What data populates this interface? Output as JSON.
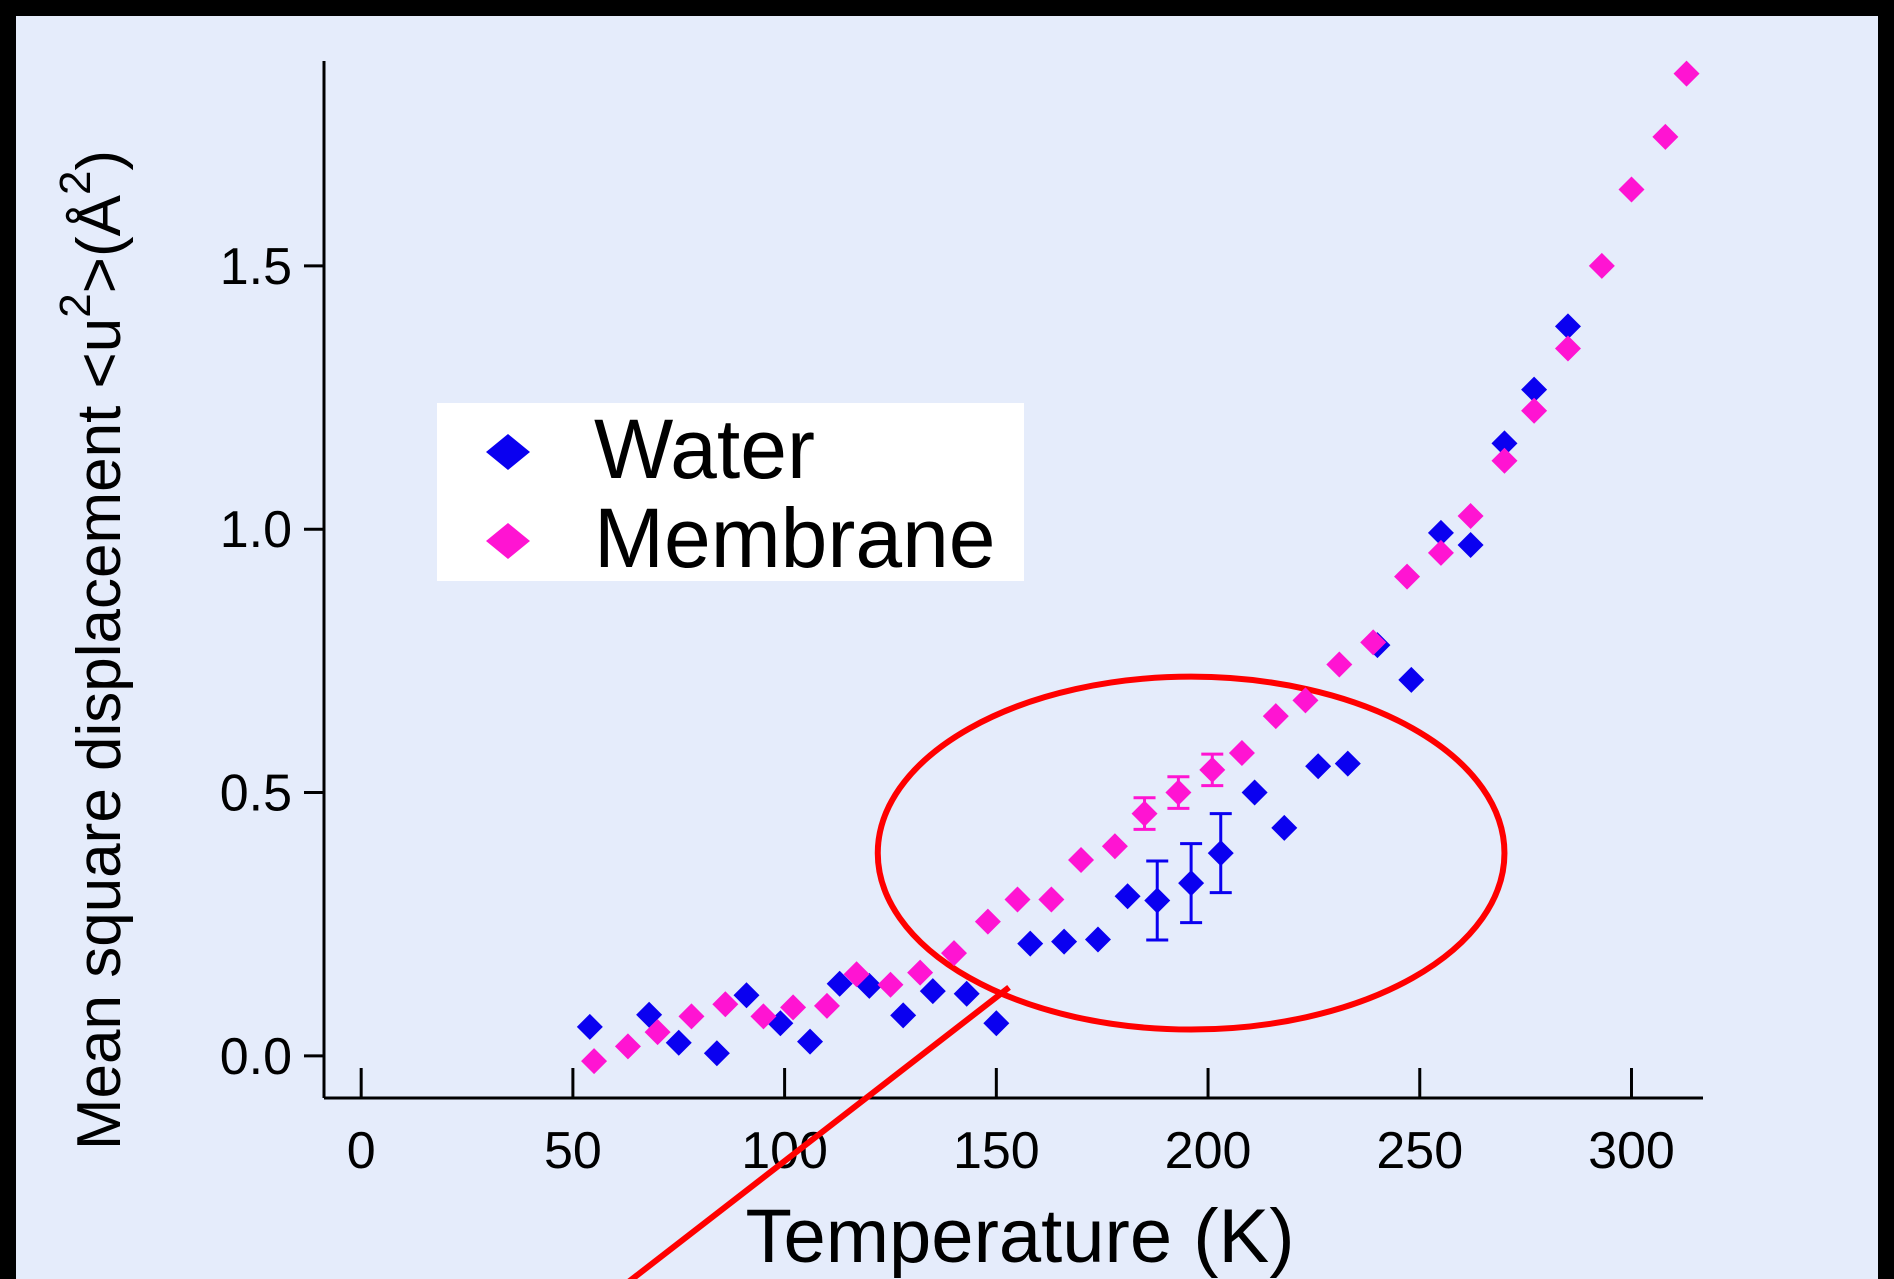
{
  "chart_data": {
    "type": "scatter",
    "xlabel": "Temperature (K)",
    "ylabel": {
      "main": "Mean square displacement <u",
      "sup1": "2",
      "mid": ">(Å",
      "sup2": "2",
      "end": ")"
    },
    "xlim": [
      -5,
      315
    ],
    "ylim": [
      -0.08,
      1.87
    ],
    "xticks": [
      {
        "value": 0,
        "label": "0"
      },
      {
        "value": 50,
        "label": "50"
      },
      {
        "value": 100,
        "label": "100"
      },
      {
        "value": 150,
        "label": "150"
      },
      {
        "value": 200,
        "label": "200"
      },
      {
        "value": 250,
        "label": "250"
      },
      {
        "value": 300,
        "label": "300"
      }
    ],
    "yticks": [
      {
        "value": 0.0,
        "label": "0.0"
      },
      {
        "value": 0.5,
        "label": "0.5"
      },
      {
        "value": 1.0,
        "label": "1.0"
      },
      {
        "value": 1.5,
        "label": "1.5"
      }
    ],
    "legend": {
      "placement": "upper-left"
    },
    "series": [
      {
        "name": "Water",
        "color": "#0a00f0",
        "points": [
          {
            "x": 54,
            "y": 0.055
          },
          {
            "x": 68,
            "y": 0.078
          },
          {
            "x": 75,
            "y": 0.025
          },
          {
            "x": 84,
            "y": 0.005
          },
          {
            "x": 91,
            "y": 0.115
          },
          {
            "x": 99,
            "y": 0.062
          },
          {
            "x": 106,
            "y": 0.027
          },
          {
            "x": 113,
            "y": 0.137
          },
          {
            "x": 120,
            "y": 0.133
          },
          {
            "x": 128,
            "y": 0.077
          },
          {
            "x": 135,
            "y": 0.123
          },
          {
            "x": 143,
            "y": 0.118
          },
          {
            "x": 150,
            "y": 0.062
          },
          {
            "x": 158,
            "y": 0.213
          },
          {
            "x": 166,
            "y": 0.217
          },
          {
            "x": 174,
            "y": 0.221
          },
          {
            "x": 181,
            "y": 0.303
          },
          {
            "x": 188,
            "y": 0.295,
            "err": 0.075
          },
          {
            "x": 196,
            "y": 0.328,
            "err": 0.075
          },
          {
            "x": 203,
            "y": 0.385,
            "err": 0.075
          },
          {
            "x": 211,
            "y": 0.5
          },
          {
            "x": 218,
            "y": 0.433
          },
          {
            "x": 226,
            "y": 0.55
          },
          {
            "x": 233,
            "y": 0.555
          },
          {
            "x": 240,
            "y": 0.78
          },
          {
            "x": 248,
            "y": 0.714
          },
          {
            "x": 255,
            "y": 0.993
          },
          {
            "x": 262,
            "y": 0.97
          },
          {
            "x": 270,
            "y": 1.163
          },
          {
            "x": 277,
            "y": 1.265
          },
          {
            "x": 285,
            "y": 1.385
          }
        ]
      },
      {
        "name": "Membrane",
        "color": "#ff14d2",
        "points": [
          {
            "x": 55,
            "y": -0.01
          },
          {
            "x": 63,
            "y": 0.018
          },
          {
            "x": 70,
            "y": 0.045
          },
          {
            "x": 78,
            "y": 0.075
          },
          {
            "x": 86,
            "y": 0.098
          },
          {
            "x": 95,
            "y": 0.075
          },
          {
            "x": 102,
            "y": 0.092
          },
          {
            "x": 110,
            "y": 0.095
          },
          {
            "x": 117,
            "y": 0.155
          },
          {
            "x": 125,
            "y": 0.135
          },
          {
            "x": 132,
            "y": 0.158
          },
          {
            "x": 140,
            "y": 0.195
          },
          {
            "x": 148,
            "y": 0.255
          },
          {
            "x": 155,
            "y": 0.297
          },
          {
            "x": 163,
            "y": 0.297
          },
          {
            "x": 170,
            "y": 0.372
          },
          {
            "x": 178,
            "y": 0.398
          },
          {
            "x": 185,
            "y": 0.46,
            "err": 0.03
          },
          {
            "x": 193,
            "y": 0.5,
            "err": 0.03
          },
          {
            "x": 201,
            "y": 0.543,
            "err": 0.03
          },
          {
            "x": 208,
            "y": 0.575
          },
          {
            "x": 216,
            "y": 0.645
          },
          {
            "x": 223,
            "y": 0.675
          },
          {
            "x": 231,
            "y": 0.743
          },
          {
            "x": 239,
            "y": 0.785
          },
          {
            "x": 247,
            "y": 0.91
          },
          {
            "x": 255,
            "y": 0.955
          },
          {
            "x": 262,
            "y": 1.025
          },
          {
            "x": 270,
            "y": 1.13
          },
          {
            "x": 277,
            "y": 1.225
          },
          {
            "x": 285,
            "y": 1.343
          },
          {
            "x": 293,
            "y": 1.5
          },
          {
            "x": 300,
            "y": 1.645
          },
          {
            "x": 308,
            "y": 1.745
          },
          {
            "x": 313,
            "y": 1.865
          }
        ]
      }
    ],
    "annotations": [
      {
        "type": "ellipse",
        "color": "#ff0000",
        "center": {
          "x": 196,
          "y": 0.385
        },
        "rx": 74,
        "ry": 0.335
      },
      {
        "type": "line",
        "color": "#ff0000",
        "from": {
          "x": 63,
          "y": -0.43
        },
        "to": {
          "x": 153,
          "y": 0.13
        }
      }
    ]
  }
}
